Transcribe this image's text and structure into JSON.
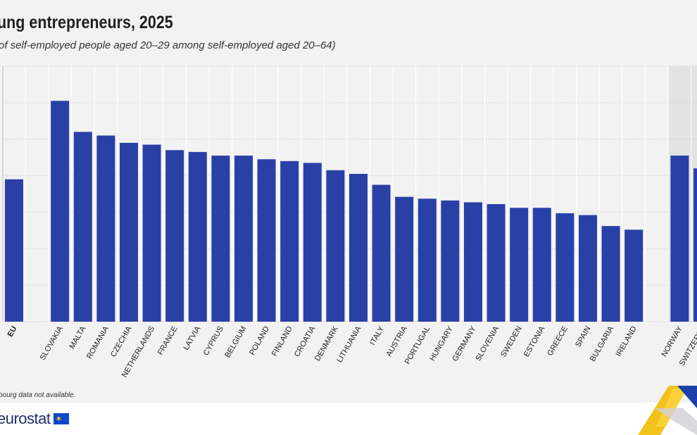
{
  "title": "ung entrepreneurs, 2025",
  "subtitle": "of self-employed people aged 20–29 among self-employed aged 20–64)",
  "footnote": "bourg data not available.",
  "logo": {
    "text": "eurostat",
    "icon": "eu-flag-icon"
  },
  "colors": {
    "bar": "#2941a6",
    "panel": "#f2f2f2",
    "grid": "#d2d2d2",
    "highlight": "#e3e3e3"
  },
  "chart_data": {
    "type": "bar",
    "categories": [
      "EU",
      "SLOVAKIA",
      "MALTA",
      "ROMANIA",
      "CZECHIA",
      "NETHERLANDS",
      "FRANCE",
      "LATVIA",
      "CYPRUS",
      "BELGIUM",
      "POLAND",
      "FINLAND",
      "CROATIA",
      "DENMARK",
      "LITHUANIA",
      "ITALY",
      "AUSTRIA",
      "PORTUGAL",
      "HUNGARY",
      "GERMANY",
      "SLOVENIA",
      "SWEDEN",
      "ESTONIA",
      "GREECE",
      "SPAIN",
      "BULGARIA",
      "IRELAND",
      "NORWAY",
      "SWITZERLAND"
    ],
    "tick_labels": [
      "EU",
      "SLOVAKIA",
      "MALTA",
      "ROMANIA",
      "CZECHIA",
      "NETHERLANDS",
      "FRANCE",
      "LATVIA",
      "CYPRUS",
      "BELGIUM",
      "POLAND",
      "FINLAND",
      "CROATIA",
      "DENMARK",
      "LITHUANIA",
      "ITALY",
      "AUSTRIA",
      "PORTUGAL",
      "HUNGARY",
      "GERMANY",
      "SLOVENIA",
      "SWEDEN",
      "ESTONIA",
      "GREECE",
      "SPAIN",
      "BULGARIA",
      "IRELAND",
      "NORWAY",
      "SWITZERLA"
    ],
    "values": [
      3.9,
      6.05,
      5.2,
      5.1,
      4.9,
      4.85,
      4.7,
      4.65,
      4.55,
      4.55,
      4.45,
      4.4,
      4.35,
      4.15,
      4.05,
      3.75,
      3.42,
      3.37,
      3.32,
      3.27,
      3.22,
      3.12,
      3.12,
      2.97,
      2.92,
      2.62,
      2.52,
      4.55,
      4.2
    ],
    "ylim": [
      0,
      7
    ],
    "gridlines": [
      0,
      1,
      2,
      3,
      4,
      5,
      6,
      7
    ],
    "grid": true,
    "bold_categories": [
      "EU"
    ],
    "highlighted_categories": [
      "NORWAY",
      "SWITZERLAND"
    ],
    "xlabel": "",
    "ylabel": ""
  }
}
